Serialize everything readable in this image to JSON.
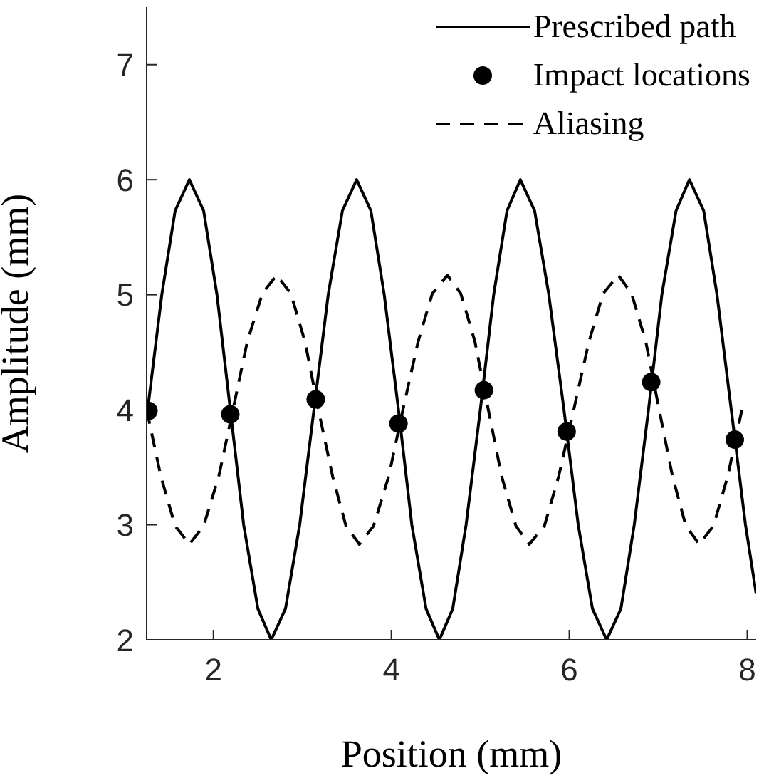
{
  "chart_data": {
    "type": "line",
    "xlabel": "Position (mm)",
    "ylabel": "Amplitude (mm)",
    "xlim": [
      1.25,
      8.1
    ],
    "ylim": [
      2,
      7.5
    ],
    "xticks": [
      2,
      4,
      6,
      8
    ],
    "yticks": [
      2,
      3,
      4,
      5,
      6,
      7
    ],
    "grid": false,
    "legend": "top right",
    "series": [
      {
        "name": "Prescribed path",
        "color": "#000000",
        "line_style": "solid",
        "marker": "none",
        "x": [
          1.25,
          1.42,
          1.57,
          1.73,
          1.89,
          2.04,
          2.19,
          2.34,
          2.5,
          2.65,
          2.81,
          2.97,
          3.13,
          3.29,
          3.45,
          3.61,
          3.77,
          3.92,
          4.08,
          4.23,
          4.39,
          4.54,
          4.69,
          4.84,
          5.0,
          5.15,
          5.3,
          5.45,
          5.61,
          5.77,
          5.94,
          6.1,
          6.26,
          6.42,
          6.58,
          6.73,
          6.89,
          7.04,
          7.2,
          7.35,
          7.51,
          7.66,
          7.82,
          7.98,
          8.1
        ],
        "values": [
          3.93,
          5,
          5.73,
          6,
          5.73,
          5,
          4,
          3,
          2.27,
          2,
          2.27,
          3,
          4,
          5,
          5.73,
          6,
          5.73,
          5,
          4,
          3,
          2.27,
          2,
          2.27,
          3,
          4,
          5,
          5.73,
          6,
          5.73,
          5,
          4,
          3,
          2.27,
          2,
          2.27,
          3,
          4,
          5,
          5.73,
          6,
          5.73,
          5,
          4,
          3,
          2.4
        ]
      },
      {
        "name": "Impact locations",
        "type": "scatter",
        "color": "#000000",
        "marker": "circle",
        "x": [
          1.27,
          2.19,
          3.15,
          4.08,
          5.04,
          5.97,
          6.92,
          7.86
        ],
        "values": [
          3.99,
          3.96,
          4.09,
          3.88,
          4.17,
          3.81,
          4.24,
          3.74
        ]
      },
      {
        "name": "Aliasing",
        "color": "#000000",
        "line_style": "dashed",
        "marker": "none",
        "x": [
          1.25,
          1.41,
          1.57,
          1.73,
          1.89,
          2.06,
          2.22,
          2.38,
          2.55,
          2.71,
          2.87,
          3.03,
          3.18,
          3.34,
          3.49,
          3.64,
          3.8,
          3.97,
          4.13,
          4.3,
          4.46,
          4.63,
          4.78,
          4.94,
          5.09,
          5.24,
          5.4,
          5.55,
          5.72,
          5.88,
          6.05,
          6.22,
          6.38,
          6.55,
          6.7,
          6.86,
          7.01,
          7.16,
          7.31,
          7.46,
          7.62,
          7.78,
          7.94
        ],
        "values": [
          4,
          3.42,
          2.99,
          2.83,
          2.99,
          3.42,
          4,
          4.59,
          5.01,
          5.17,
          5.01,
          4.59,
          4,
          3.42,
          2.99,
          2.83,
          2.99,
          3.42,
          4,
          4.59,
          5.01,
          5.17,
          5.01,
          4.59,
          4,
          3.42,
          2.99,
          2.83,
          2.99,
          3.42,
          4,
          4.59,
          5.01,
          5.17,
          5.01,
          4.59,
          4,
          3.42,
          2.99,
          2.83,
          2.99,
          3.42,
          4
        ]
      }
    ]
  }
}
